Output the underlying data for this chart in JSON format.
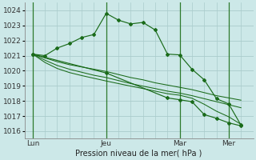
{
  "xlabel": "Pression niveau de la mer( hPa )",
  "ylim": [
    1015.5,
    1024.5
  ],
  "yticks": [
    1016,
    1017,
    1018,
    1019,
    1020,
    1021,
    1022,
    1023,
    1024
  ],
  "bg_color": "#cce8e8",
  "grid_color": "#aacccc",
  "line_color": "#1a6b1a",
  "vline_color": "#2d7a2d",
  "day_labels": [
    "Lun",
    "Jeu",
    "Mar",
    "Mer"
  ],
  "day_positions": [
    0,
    36,
    72,
    96
  ],
  "xlim": [
    -4,
    108
  ],
  "series1": {
    "x": [
      0,
      6,
      12,
      18,
      24,
      30,
      36,
      42,
      48,
      54,
      60,
      66,
      72,
      78,
      84,
      90,
      96,
      102
    ],
    "y": [
      1021.1,
      1021.0,
      1021.5,
      1021.8,
      1022.2,
      1022.4,
      1023.8,
      1023.35,
      1023.1,
      1023.2,
      1022.7,
      1021.1,
      1021.05,
      1020.1,
      1019.4,
      1018.15,
      1017.8,
      1016.4
    ]
  },
  "series2": {
    "x": [
      0,
      6,
      12,
      18,
      24,
      30,
      36,
      42,
      48,
      54,
      60,
      66,
      72,
      78,
      84,
      90,
      96,
      102
    ],
    "y": [
      1021.1,
      1020.85,
      1020.6,
      1020.4,
      1020.25,
      1020.1,
      1019.95,
      1019.75,
      1019.55,
      1019.4,
      1019.2,
      1019.05,
      1018.9,
      1018.75,
      1018.55,
      1018.35,
      1018.2,
      1018.05
    ]
  },
  "series3": {
    "x": [
      0,
      6,
      12,
      18,
      24,
      30,
      36,
      42,
      48,
      54,
      60,
      66,
      72,
      78,
      84,
      90,
      96,
      102
    ],
    "y": [
      1021.1,
      1020.7,
      1020.35,
      1020.1,
      1019.9,
      1019.7,
      1019.55,
      1019.35,
      1019.15,
      1018.98,
      1018.82,
      1018.65,
      1018.52,
      1018.35,
      1018.15,
      1017.95,
      1017.75,
      1017.55
    ]
  },
  "series4": {
    "x": [
      0,
      6,
      12,
      18,
      24,
      30,
      36,
      42,
      48,
      54,
      60,
      66,
      72,
      78,
      84,
      90,
      96,
      102
    ],
    "y": [
      1021.1,
      1020.55,
      1020.15,
      1019.88,
      1019.68,
      1019.5,
      1019.32,
      1019.15,
      1018.98,
      1018.82,
      1018.65,
      1018.48,
      1018.38,
      1018.18,
      1017.78,
      1017.32,
      1016.95,
      1016.45
    ]
  },
  "series5": {
    "x": [
      0,
      36,
      66,
      72,
      78,
      84,
      90,
      96,
      102
    ],
    "y": [
      1021.1,
      1019.85,
      1018.2,
      1018.08,
      1017.95,
      1017.1,
      1016.85,
      1016.55,
      1016.35
    ]
  }
}
